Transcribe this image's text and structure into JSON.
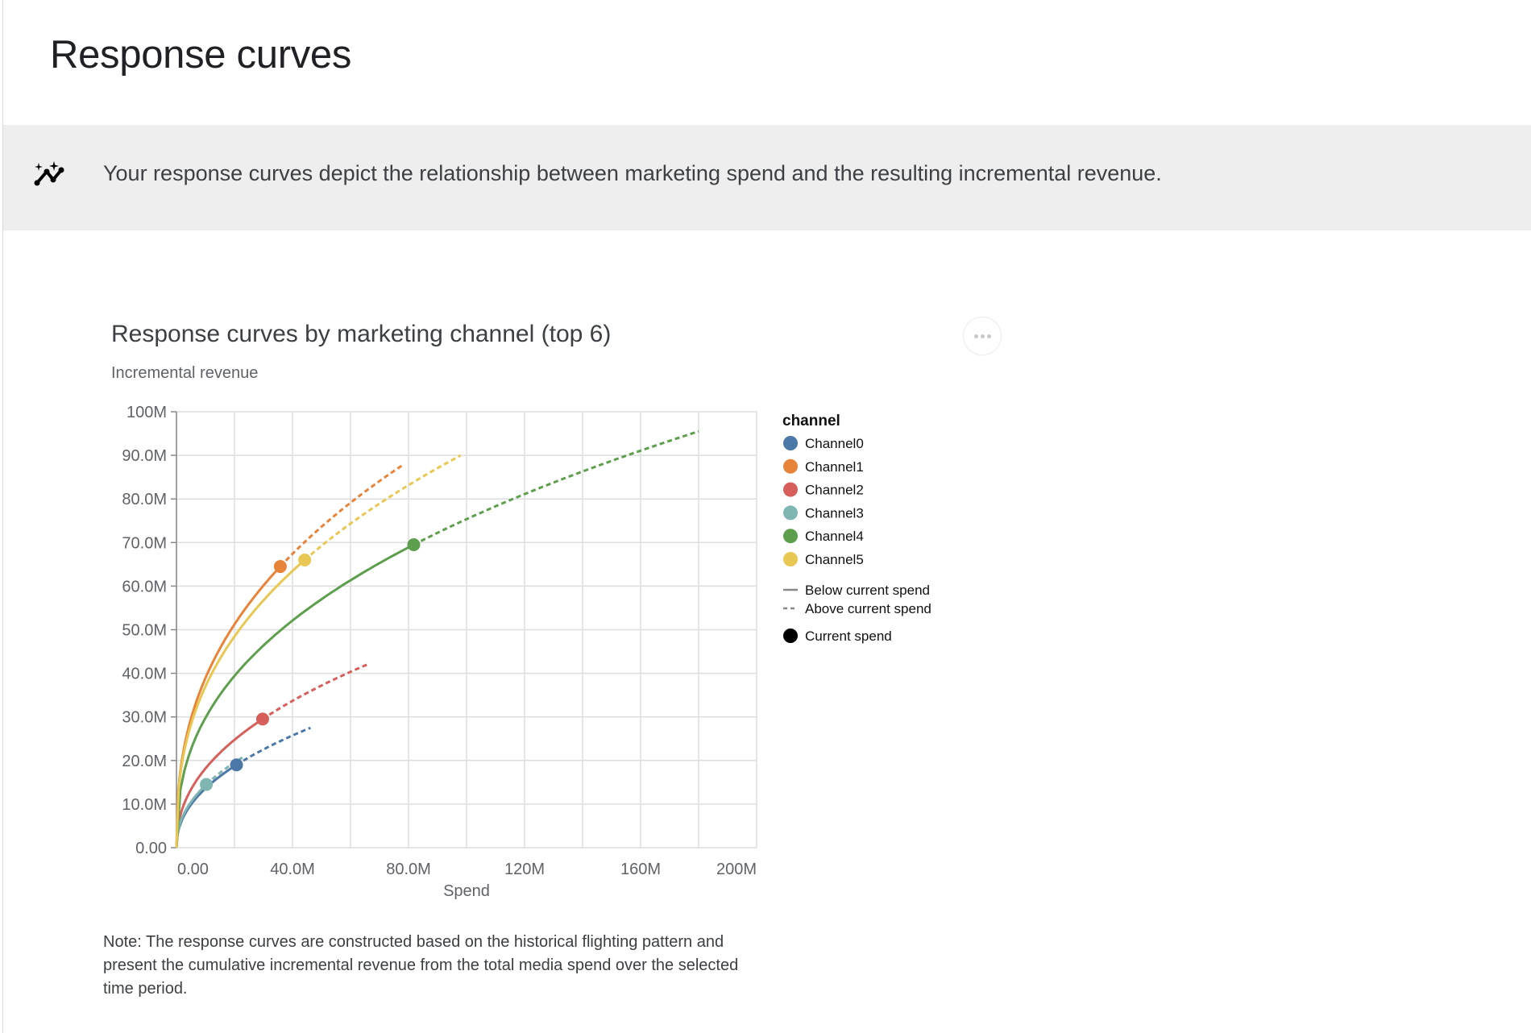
{
  "page": {
    "title": "Response curves",
    "banner_icon": "insights-sparkle-icon",
    "banner_text": "Your response curves depict the relationship between marketing spend and the resulting incremental revenue.",
    "note": "Note: The response curves are constructed based on the historical flighting pattern and present the cumulative incremental revenue from the total media spend over the selected time period.",
    "more_icon": "more-horizontal-icon"
  },
  "chart_data": {
    "type": "line",
    "title": "Response curves by marketing channel (top 6)",
    "xlabel": "Spend",
    "ylabel": "Incremental revenue",
    "xlim": [
      0,
      200000000
    ],
    "ylim": [
      0,
      100000000
    ],
    "grid": true,
    "x_ticks": [
      0,
      40000000,
      80000000,
      120000000,
      160000000,
      200000000
    ],
    "x_tick_labels": [
      "0.00",
      "40.0M",
      "80.0M",
      "120M",
      "160M",
      "200M"
    ],
    "y_ticks": [
      0,
      10000000,
      20000000,
      30000000,
      40000000,
      50000000,
      60000000,
      70000000,
      80000000,
      90000000,
      100000000
    ],
    "y_tick_labels": [
      "0.00",
      "10.0M",
      "20.0M",
      "30.0M",
      "40.0M",
      "50.0M",
      "60.0M",
      "70.0M",
      "80.0M",
      "90.0M",
      "100M"
    ],
    "legend": {
      "title": "channel",
      "placement": "right",
      "below_label": "Below current spend",
      "above_label": "Above current spend",
      "current_label": "Current spend"
    },
    "series": [
      {
        "name": "Channel0",
        "color": "#4c78a8",
        "current": [
          20700000,
          19000000
        ],
        "max": [
          46200000,
          27500000
        ]
      },
      {
        "name": "Channel1",
        "color": "#e8833a",
        "current": [
          35800000,
          64500000
        ],
        "max": [
          78500000,
          88000000
        ]
      },
      {
        "name": "Channel2",
        "color": "#d65f5b",
        "current": [
          29700000,
          29500000
        ],
        "max": [
          65700000,
          42000000
        ]
      },
      {
        "name": "Channel3",
        "color": "#7fb6b1",
        "current": [
          10300000,
          14500000
        ],
        "max": [
          23500000,
          21000000
        ]
      },
      {
        "name": "Channel4",
        "color": "#5e9f4e",
        "current": [
          81800000,
          69500000
        ],
        "max": [
          180000000,
          95500000
        ]
      },
      {
        "name": "Channel5",
        "color": "#e8c853",
        "current": [
          44200000,
          66000000
        ],
        "max": [
          98000000,
          90000000
        ]
      }
    ]
  }
}
